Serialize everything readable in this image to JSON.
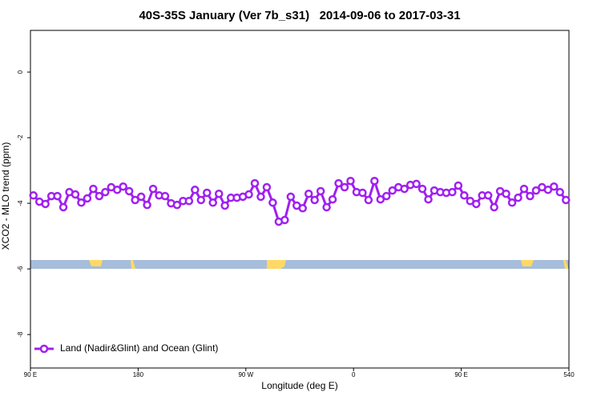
{
  "chart_data": {
    "type": "line",
    "title": "40S-35S January (Ver 7b_s31)   2014-09-06 to 2017-03-31",
    "xlabel": "Longitude (deg E)",
    "ylabel": "XCO2 - MLO trend (ppm)",
    "xlim": [
      90,
      540
    ],
    "xticks": [
      {
        "value": 90,
        "label": "90 E"
      },
      180,
      {
        "value": 270,
        "label": "90 W"
      },
      {
        "value": 360,
        "label": "0"
      },
      {
        "value": 450,
        "label": "90 E"
      },
      540
    ],
    "ylim": [
      -9.02,
      1.27
    ],
    "yticks": [
      0,
      -2,
      -4,
      -6,
      -8
    ],
    "legend": "bottomleft",
    "x": [
      92.5,
      97.5,
      102.5,
      107.5,
      112.5,
      117.5,
      122.5,
      127.5,
      132.5,
      137.5,
      142.5,
      147.5,
      152.5,
      157.5,
      162.5,
      167.5,
      172.5,
      177.5,
      182.5,
      187.5,
      192.5,
      197.5,
      202.5,
      207.5,
      212.5,
      217.5,
      222.5,
      227.5,
      232.5,
      237.5,
      242.5,
      247.5,
      252.5,
      257.5,
      262.5,
      267.5,
      272.5,
      277.5,
      282.5,
      287.5,
      292.5,
      297.5,
      302.5,
      307.5,
      312.5,
      317.5,
      322.5,
      327.5,
      332.5,
      337.5,
      342.5,
      347.5,
      352.5,
      357.5,
      362.5,
      367.5,
      372.5,
      377.5,
      382.5,
      387.5,
      392.5,
      397.5,
      402.5,
      407.5,
      412.5,
      417.5,
      422.5,
      427.5,
      432.5,
      437.5,
      442.5,
      447.5,
      452.5,
      457.5,
      462.5,
      467.5,
      472.5,
      477.5,
      482.5,
      487.5,
      492.5,
      497.5,
      502.5,
      507.5,
      512.5,
      517.5,
      522.5,
      527.5,
      532.5,
      537.5
    ],
    "series": [
      {
        "name": "Land (Nadir&Glint) and Ocean (Glint)",
        "color": "#a020f0",
        "values": [
          -3.76,
          -3.95,
          -4.02,
          -3.78,
          -3.78,
          -4.12,
          -3.66,
          -3.73,
          -3.98,
          -3.85,
          -3.56,
          -3.78,
          -3.66,
          -3.51,
          -3.59,
          -3.49,
          -3.63,
          -3.9,
          -3.8,
          -4.05,
          -3.56,
          -3.76,
          -3.78,
          -4.0,
          -4.05,
          -3.93,
          -3.93,
          -3.59,
          -3.9,
          -3.68,
          -3.98,
          -3.71,
          -4.07,
          -3.83,
          -3.83,
          -3.8,
          -3.73,
          -3.39,
          -3.8,
          -3.51,
          -3.98,
          -4.56,
          -4.51,
          -3.8,
          -4.07,
          -4.15,
          -3.71,
          -3.9,
          -3.63,
          -4.12,
          -3.88,
          -3.39,
          -3.51,
          -3.32,
          -3.66,
          -3.68,
          -3.9,
          -3.32,
          -3.88,
          -3.78,
          -3.61,
          -3.51,
          -3.56,
          -3.44,
          -3.41,
          -3.56,
          -3.88,
          -3.61,
          -3.66,
          -3.68,
          -3.66,
          -3.46,
          -3.76,
          -3.93,
          -4.02,
          -3.76,
          -3.76,
          -4.12,
          -3.63,
          -3.71,
          -3.98,
          -3.83,
          -3.56,
          -3.78,
          -3.61,
          -3.51,
          -3.59,
          -3.49,
          -3.66,
          -3.9
        ]
      }
    ]
  }
}
